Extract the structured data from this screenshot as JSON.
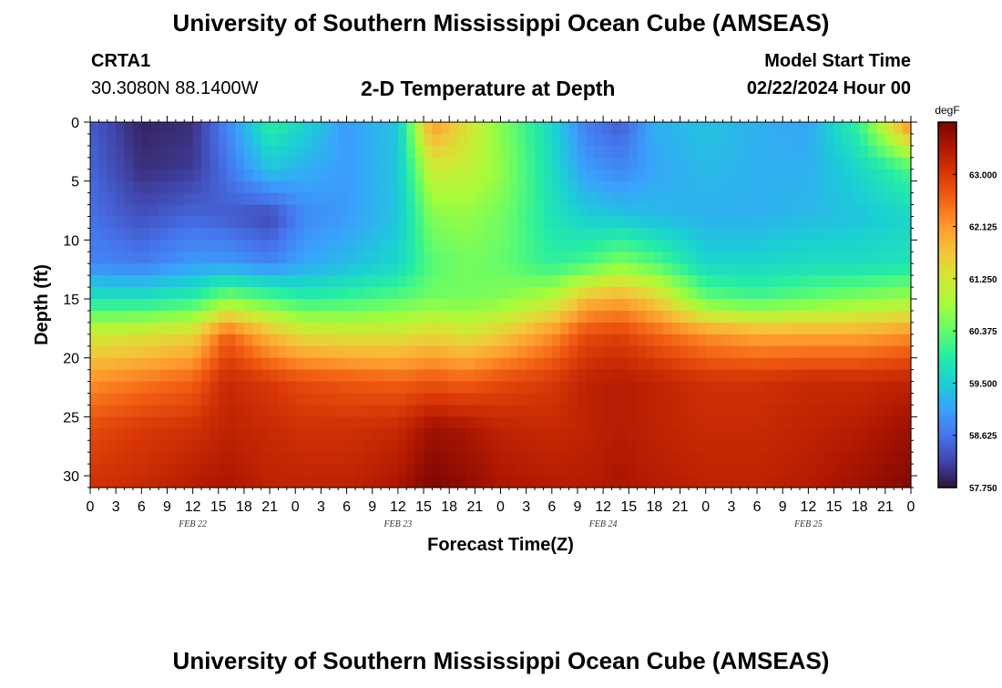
{
  "header": {
    "title": "University of Southern Mississippi Ocean Cube (AMSEAS)",
    "station_name": "CRTA1",
    "station_coords": "30.3080N  88.1400W",
    "plot_title": "2-D Temperature at Depth",
    "model_start_label": "Model Start Time",
    "model_start_value": "02/22/2024 Hour 00"
  },
  "footer": {
    "title": "University of Southern Mississippi Ocean Cube (AMSEAS)"
  },
  "colors": {
    "palette": [
      "#30123b",
      "#4145ab",
      "#4675ed",
      "#39a2fc",
      "#1bcfd4",
      "#24eca6",
      "#61fc6c",
      "#a4fc3b",
      "#d1e834",
      "#f3c63a",
      "#fe9b2d",
      "#f36315",
      "#d93806",
      "#b11901",
      "#7a0402"
    ]
  },
  "chart_data": {
    "type": "heatmap",
    "title": "2-D Temperature at Depth",
    "xlabel": "Forecast Time(Z)",
    "ylabel": "Depth (ft)",
    "x_tick_labels": [
      "0",
      "3",
      "6",
      "9",
      "12",
      "15",
      "18",
      "21",
      "0",
      "3",
      "6",
      "9",
      "12",
      "15",
      "18",
      "21",
      "0",
      "3",
      "6",
      "9",
      "12",
      "15",
      "18",
      "21",
      "0",
      "3",
      "6",
      "9",
      "12",
      "15",
      "18",
      "21",
      "0"
    ],
    "x_range_hours": [
      0,
      96
    ],
    "date_labels": [
      {
        "label": "FEB 22",
        "hour": 12
      },
      {
        "label": "FEB 23",
        "hour": 36
      },
      {
        "label": "FEB 24",
        "hour": 60
      },
      {
        "label": "FEB 25",
        "hour": 84
      }
    ],
    "y_tick_labels": [
      "0",
      "5",
      "10",
      "15",
      "20",
      "25",
      "30"
    ],
    "y_range_ft": [
      0,
      31
    ],
    "colorbar": {
      "unit": "degF",
      "tick_labels": [
        "63.000",
        "62.125",
        "61.250",
        "60.375",
        "59.500",
        "58.625",
        "57.750"
      ],
      "range": [
        57.75,
        63.875
      ]
    },
    "depths_ft": [
      0,
      4,
      8,
      12,
      15,
      18,
      22,
      26,
      31
    ],
    "hours": [
      0,
      6,
      12,
      16,
      21,
      25,
      30,
      36,
      40,
      44,
      48,
      54,
      58,
      62,
      66,
      72,
      78,
      84,
      90,
      96
    ],
    "temperature_degF": [
      [
        58.4,
        57.9,
        58.0,
        58.8,
        60.0,
        59.6,
        59.0,
        59.4,
        62.2,
        61.4,
        60.6,
        59.6,
        58.7,
        58.4,
        59.2,
        59.4,
        59.2,
        59.1,
        60.1,
        62.4
      ],
      [
        58.5,
        58.0,
        58.1,
        58.6,
        59.4,
        59.2,
        59.0,
        59.4,
        61.2,
        61.1,
        60.7,
        59.7,
        59.0,
        58.8,
        59.1,
        59.3,
        59.2,
        59.2,
        59.6,
        60.2
      ],
      [
        58.6,
        58.3,
        58.5,
        58.4,
        58.2,
        58.8,
        59.0,
        59.4,
        60.6,
        60.7,
        60.5,
        59.8,
        59.5,
        59.4,
        59.3,
        59.2,
        59.2,
        59.3,
        59.4,
        59.6
      ],
      [
        58.8,
        58.7,
        59.0,
        59.0,
        58.8,
        59.1,
        59.3,
        59.6,
        60.3,
        60.5,
        60.4,
        60.0,
        60.2,
        60.6,
        60.3,
        59.6,
        59.6,
        59.7,
        59.7,
        59.8
      ],
      [
        59.8,
        59.8,
        60.0,
        60.6,
        60.3,
        60.0,
        60.1,
        60.3,
        60.5,
        60.5,
        60.6,
        61.0,
        61.8,
        62.0,
        61.6,
        60.4,
        60.2,
        60.4,
        60.6,
        60.8
      ],
      [
        61.2,
        61.3,
        61.5,
        62.6,
        61.8,
        61.4,
        61.3,
        61.3,
        61.5,
        61.3,
        61.6,
        62.2,
        62.8,
        62.9,
        62.6,
        62.2,
        62.0,
        62.0,
        62.0,
        62.2
      ],
      [
        62.2,
        62.4,
        62.6,
        63.2,
        63.0,
        62.8,
        62.7,
        62.6,
        62.7,
        62.6,
        62.8,
        63.0,
        63.3,
        63.4,
        63.3,
        63.1,
        63.1,
        63.2,
        63.2,
        63.3
      ],
      [
        62.8,
        63.0,
        63.1,
        63.3,
        63.2,
        63.1,
        63.1,
        63.2,
        63.6,
        63.5,
        63.3,
        63.2,
        63.3,
        63.4,
        63.3,
        63.2,
        63.2,
        63.3,
        63.4,
        63.6
      ],
      [
        63.1,
        63.2,
        63.4,
        63.5,
        63.3,
        63.3,
        63.3,
        63.5,
        63.85,
        63.7,
        63.5,
        63.4,
        63.4,
        63.5,
        63.4,
        63.3,
        63.3,
        63.4,
        63.6,
        63.8
      ]
    ]
  }
}
